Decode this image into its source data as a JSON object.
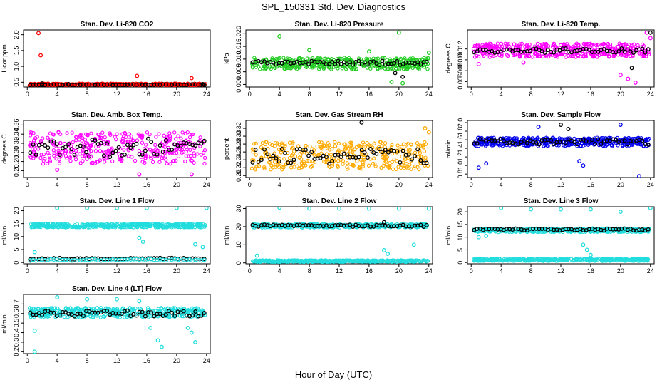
{
  "figure": {
    "title": "SPL_150331  Std. Dev. Diagnostics",
    "xlabel": "Hour of Day (UTC)"
  },
  "chart_data": [
    {
      "type": "scatter",
      "title": "Stan. Dev. Li-820 CO2",
      "ylabel": "Licor ppm",
      "xlim": [
        -0.5,
        24.5
      ],
      "ylim": [
        0.35,
        2.15
      ],
      "xticks": [
        "0",
        "4",
        "8",
        "12",
        "16",
        "20",
        "24"
      ],
      "yticks": [
        {
          "v": 0.5,
          "label": "0.5"
        },
        {
          "v": 1.0,
          "label": "1.0"
        },
        {
          "v": 1.5,
          "label": "1.5"
        },
        {
          "v": 2.0,
          "label": "2.0"
        }
      ],
      "series": [
        {
          "color": "#ff0000",
          "fill": "band",
          "band": [
            0.38,
            0.46
          ],
          "outliers": [
            [
              1.5,
              2.05
            ],
            [
              1.8,
              1.35
            ],
            [
              14.7,
              0.7
            ],
            [
              22,
              0.63
            ],
            [
              2,
              0.42
            ],
            [
              8,
              0.4
            ]
          ]
        },
        {
          "color": "#000000",
          "fill": "points",
          "base": 0.42,
          "spread": 0.015,
          "outliers": [
            [
              2,
              0.46
            ],
            [
              5.5,
              0.44
            ],
            [
              23.5,
              0.44
            ]
          ]
        }
      ]
    },
    {
      "type": "scatter",
      "title": "Stan. Dev. Li-820 Pressure",
      "ylabel": "kPa",
      "xlim": [
        -0.5,
        24.5
      ],
      "ylim": [
        -0.001,
        0.0215
      ],
      "xticks": [
        "0",
        "4",
        "8",
        "12",
        "16",
        "20",
        "24"
      ],
      "yticks": [
        {
          "v": 0.0,
          "label": "0.000"
        },
        {
          "v": 0.005,
          "label": "0.005"
        },
        {
          "v": 0.01,
          "label": "0.010"
        },
        {
          "v": 0.015,
          "label": "0.015"
        },
        {
          "v": 0.02,
          "label": "0.020"
        }
      ],
      "series": [
        {
          "color": "#22cc22",
          "fill": "band",
          "band": [
            0.006,
            0.0105
          ],
          "outliers": [
            [
              4,
              0.019
            ],
            [
              20,
              0.0205
            ],
            [
              24,
              0.0125
            ],
            [
              16,
              0.013
            ],
            [
              8,
              0.0135
            ],
            [
              19,
              0.001
            ],
            [
              20.5,
              0.0005
            ]
          ]
        },
        {
          "color": "#000000",
          "fill": "points",
          "base": 0.0085,
          "spread": 0.0008,
          "outliers": [
            [
              19.5,
              0.0045
            ],
            [
              20.5,
              0.003
            ]
          ]
        }
      ]
    },
    {
      "type": "scatter",
      "title": "Stan. Dev. Li-820 Temp.",
      "ylabel": "degrees C",
      "xlim": [
        -0.5,
        24.5
      ],
      "ylim": [
        0.005,
        0.0155
      ],
      "xticks": [
        "0",
        "4",
        "8",
        "12",
        "16",
        "20",
        "24"
      ],
      "yticks": [
        {
          "v": 0.006,
          "label": "0.006"
        },
        {
          "v": 0.008,
          "label": "0.008"
        },
        {
          "v": 0.01,
          "label": "0.010"
        },
        {
          "v": 0.012,
          "label": "0.012"
        }
      ],
      "series": [
        {
          "color": "#ff00ff",
          "fill": "band",
          "band": [
            0.0105,
            0.013
          ],
          "outliers": [
            [
              1,
              0.0092
            ],
            [
              7,
              0.0095
            ],
            [
              20,
              0.0072
            ],
            [
              21,
              0.0065
            ],
            [
              22,
              0.0058
            ],
            [
              23.5,
              0.015
            ],
            [
              24,
              0.014
            ]
          ]
        },
        {
          "color": "#000000",
          "fill": "points",
          "base": 0.0117,
          "spread": 0.0004,
          "outliers": [
            [
              24,
              0.015
            ],
            [
              21.5,
              0.0085
            ]
          ]
        }
      ]
    },
    {
      "type": "scatter",
      "title": "Stan. Dev. Amb. Box Temp.",
      "ylabel": "degrees C",
      "xlim": [
        -0.5,
        24.5
      ],
      "ylim": [
        0.245,
        0.37
      ],
      "xticks": [
        "0",
        "4",
        "8",
        "12",
        "16",
        "20",
        "24"
      ],
      "yticks": [
        {
          "v": 0.26,
          "label": "0.26"
        },
        {
          "v": 0.28,
          "label": "0.28"
        },
        {
          "v": 0.3,
          "label": "0.30"
        },
        {
          "v": 0.32,
          "label": "0.32"
        },
        {
          "v": 0.34,
          "label": "0.34"
        },
        {
          "v": 0.36,
          "label": "0.36"
        }
      ],
      "series": [
        {
          "color": "#ff00ff",
          "fill": "scatter",
          "band": [
            0.275,
            0.345
          ],
          "outliers": [
            [
              15,
              0.252
            ],
            [
              22,
              0.252
            ],
            [
              4,
              0.262
            ]
          ]
        },
        {
          "color": "#000000",
          "fill": "points",
          "base": 0.31,
          "spread": 0.02,
          "outliers": []
        }
      ]
    },
    {
      "type": "scatter",
      "title": "Stan. Dev. Gas Stream RH",
      "ylabel": "percent",
      "xlim": [
        -0.5,
        24.5
      ],
      "ylim": [
        0.195,
        0.34
      ],
      "xticks": [
        "0",
        "4",
        "8",
        "12",
        "16",
        "20",
        "24"
      ],
      "yticks": [
        {
          "v": 0.2,
          "label": "0.20"
        },
        {
          "v": 0.22,
          "label": "0.22"
        },
        {
          "v": 0.24,
          "label": "0.24"
        },
        {
          "v": 0.26,
          "label": "0.26"
        },
        {
          "v": 0.28,
          "label": "0.28"
        },
        {
          "v": 0.3,
          "label": "0.30"
        },
        {
          "v": 0.32,
          "label": "0.32"
        }
      ],
      "series": [
        {
          "color": "#ffaa00",
          "fill": "scatter",
          "band": [
            0.215,
            0.285
          ],
          "outliers": [
            [
              23.5,
              0.32
            ],
            [
              24,
              0.31
            ]
          ]
        },
        {
          "color": "#000000",
          "fill": "points",
          "base": 0.248,
          "spread": 0.02,
          "outliers": [
            [
              15,
              0.335
            ]
          ]
        }
      ]
    },
    {
      "type": "scatter",
      "title": "Stan. Dev. Sample Flow",
      "ylabel": "ml/min",
      "xlim": [
        -0.5,
        24.5
      ],
      "ylim": [
        0.72,
        2.05
      ],
      "xticks": [
        "0",
        "4",
        "8",
        "12",
        "16",
        "20",
        "24"
      ],
      "yticks": [
        {
          "v": 0.8,
          "label": "0.8"
        },
        {
          "v": 1.0,
          "label": "1.0"
        },
        {
          "v": 1.2,
          "label": "1.2"
        },
        {
          "v": 1.4,
          "label": "1.4"
        },
        {
          "v": 1.6,
          "label": "1.6"
        },
        {
          "v": 1.8,
          "label": "1.8"
        },
        {
          "v": 2.0,
          "label": "2.0"
        }
      ],
      "series": [
        {
          "color": "#0000ee",
          "fill": "band",
          "band": [
            1.45,
            1.65
          ],
          "outliers": [
            [
              1,
              0.95
            ],
            [
              2,
              1.05
            ],
            [
              22.5,
              0.75
            ],
            [
              15,
              1.0
            ],
            [
              14.5,
              1.1
            ],
            [
              9,
              1.9
            ],
            [
              20,
              1.95
            ]
          ]
        },
        {
          "color": "#000000",
          "fill": "points",
          "base": 1.55,
          "spread": 0.07,
          "outliers": [
            [
              12,
              1.95
            ],
            [
              13,
              1.85
            ]
          ]
        }
      ]
    },
    {
      "type": "scatter",
      "title": "Stan. Dev. Line 1 Flow",
      "ylabel": "ml/min",
      "xlim": [
        -0.5,
        24.5
      ],
      "ylim": [
        -0.5,
        21.5
      ],
      "xticks": [
        "0",
        "4",
        "8",
        "12",
        "16",
        "20",
        "24"
      ],
      "yticks": [
        {
          "v": 0,
          "label": "0"
        },
        {
          "v": 5,
          "label": "5"
        },
        {
          "v": 10,
          "label": "10"
        },
        {
          "v": 15,
          "label": "15"
        },
        {
          "v": 20,
          "label": "20"
        }
      ],
      "series": [
        {
          "color": "#22dddd",
          "fill": "band",
          "band": [
            13.5,
            15.0
          ],
          "outliers": [
            [
              4,
              21
            ],
            [
              8,
              21
            ],
            [
              12,
              21
            ],
            [
              16,
              21
            ],
            [
              20,
              21
            ],
            [
              24,
              21
            ],
            [
              15,
              9.5
            ],
            [
              15.5,
              8
            ],
            [
              22.5,
              7
            ],
            [
              23.5,
              6
            ],
            [
              1,
              4
            ]
          ]
        },
        {
          "color": "#000000",
          "fill": "points",
          "base": 1.5,
          "spread": 0.3,
          "outliers": []
        },
        {
          "color": "#22dddd",
          "fill": "points",
          "base": 1.0,
          "spread": 0.3,
          "outliers": []
        }
      ]
    },
    {
      "type": "scatter",
      "title": "Stan. Dev. Line 2 Flow",
      "ylabel": "ml/min",
      "xlim": [
        -0.5,
        24.5
      ],
      "ylim": [
        -0.5,
        31
      ],
      "xticks": [
        "0",
        "4",
        "8",
        "12",
        "16",
        "20",
        "24"
      ],
      "yticks": [
        {
          "v": 0,
          "label": "0"
        },
        {
          "v": 10,
          "label": "10"
        },
        {
          "v": 20,
          "label": "20"
        },
        {
          "v": 30,
          "label": "30"
        }
      ],
      "series": [
        {
          "color": "#22dddd",
          "fill": "band",
          "band": [
            19.5,
            21.5
          ],
          "outliers": [
            [
              4,
              30.5
            ],
            [
              8,
              30
            ],
            [
              12,
              30
            ],
            [
              16,
              30
            ],
            [
              20,
              30
            ],
            [
              24,
              30
            ],
            [
              18,
              7
            ],
            [
              18.5,
              5
            ],
            [
              22,
              10
            ],
            [
              1,
              4
            ]
          ]
        },
        {
          "color": "#000000",
          "fill": "points",
          "base": 20.5,
          "spread": 0.6,
          "outliers": [
            [
              18,
              22.5
            ]
          ]
        },
        {
          "color": "#22dddd",
          "fill": "band",
          "band": [
            0.5,
            1.5
          ],
          "outliers": []
        }
      ]
    },
    {
      "type": "scatter",
      "title": "Stan. Dev. Line 3 Flow",
      "ylabel": "ml/min",
      "xlim": [
        -0.5,
        24.5
      ],
      "ylim": [
        -0.5,
        22
      ],
      "xticks": [
        "0",
        "4",
        "8",
        "12",
        "16",
        "20",
        "24"
      ],
      "yticks": [
        {
          "v": 0,
          "label": "0"
        },
        {
          "v": 5,
          "label": "5"
        },
        {
          "v": 10,
          "label": "10"
        },
        {
          "v": 15,
          "label": "15"
        },
        {
          "v": 20,
          "label": "20"
        }
      ],
      "series": [
        {
          "color": "#22dddd",
          "fill": "band",
          "band": [
            12.0,
            13.5
          ],
          "outliers": [
            [
              4,
              21.5
            ],
            [
              8,
              21
            ],
            [
              12,
              21
            ],
            [
              16,
              21
            ],
            [
              20,
              20
            ],
            [
              24,
              21.5
            ],
            [
              15,
              7
            ],
            [
              15.5,
              5
            ],
            [
              16,
              3
            ],
            [
              1,
              10
            ],
            [
              2,
              10.5
            ]
          ]
        },
        {
          "color": "#000000",
          "fill": "points",
          "base": 13.0,
          "spread": 0.4,
          "outliers": []
        },
        {
          "color": "#22dddd",
          "fill": "band",
          "band": [
            0.6,
            1.6
          ],
          "outliers": []
        }
      ]
    },
    {
      "type": "scatter",
      "title": "Stan. Dev. Line 4 (LT) Flow",
      "ylabel": "ml/min",
      "xlim": [
        -0.5,
        24.5
      ],
      "ylim": [
        0.18,
        0.8
      ],
      "xticks": [
        "0",
        "4",
        "8",
        "12",
        "16",
        "20",
        "24"
      ],
      "yticks": [
        {
          "v": 0.2,
          "label": "0.2"
        },
        {
          "v": 0.3,
          "label": "0.3"
        },
        {
          "v": 0.4,
          "label": "0.4"
        },
        {
          "v": 0.5,
          "label": "0.5"
        },
        {
          "v": 0.6,
          "label": "0.6"
        },
        {
          "v": 0.7,
          "label": "0.7"
        }
      ],
      "series": [
        {
          "color": "#22dddd",
          "fill": "band",
          "band": [
            0.56,
            0.66
          ],
          "outliers": [
            [
              1,
              0.2
            ],
            [
              1,
              0.42
            ],
            [
              4,
              0.77
            ],
            [
              8,
              0.75
            ],
            [
              12,
              0.75
            ],
            [
              15,
              0.73
            ],
            [
              18,
              0.25
            ],
            [
              17.5,
              0.32
            ],
            [
              16.5,
              0.45
            ],
            [
              22.5,
              0.3
            ],
            [
              22,
              0.4
            ],
            [
              21.5,
              0.45
            ]
          ]
        },
        {
          "color": "#000000",
          "fill": "points",
          "base": 0.6,
          "spread": 0.03,
          "outliers": []
        }
      ]
    }
  ]
}
